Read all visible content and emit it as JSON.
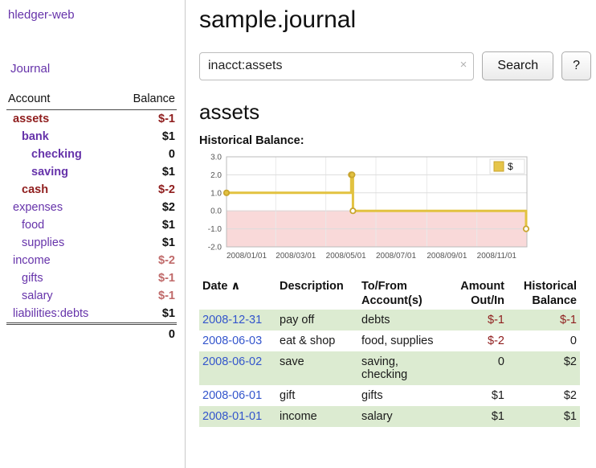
{
  "app": {
    "title": "hledger-web"
  },
  "sidebar": {
    "journal_link": "Journal",
    "accounts_table": {
      "account_header": "Account",
      "balance_header": "Balance",
      "rows": [
        {
          "name": "assets",
          "balance": "$-1"
        },
        {
          "name": "bank",
          "balance": "$1"
        },
        {
          "name": "checking",
          "balance": "0"
        },
        {
          "name": "saving",
          "balance": "$1"
        },
        {
          "name": "cash",
          "balance": "$-2"
        },
        {
          "name": "expenses",
          "balance": "$2"
        },
        {
          "name": "food",
          "balance": "$1"
        },
        {
          "name": "supplies",
          "balance": "$1"
        },
        {
          "name": "income",
          "balance": "$-2"
        },
        {
          "name": "gifts",
          "balance": "$-1"
        },
        {
          "name": "salary",
          "balance": "$-1"
        },
        {
          "name": "liabilities:debts",
          "balance": "$1"
        }
      ],
      "total": "0"
    }
  },
  "main": {
    "title": "sample.journal",
    "search": {
      "value": "inacct:assets",
      "clear": "×",
      "search_button": "Search",
      "help_button": "?"
    },
    "account_heading": "assets",
    "chart_title": "Historical Balance:"
  },
  "chart_data": {
    "type": "line",
    "style": "step-after",
    "title": "Historical Balance",
    "legend": [
      {
        "label": "$",
        "color": "#e6c54a"
      }
    ],
    "ylim": [
      -2.0,
      3.0
    ],
    "y_ticks": [
      3.0,
      2.0,
      1.0,
      0.0,
      -1.0,
      -2.0
    ],
    "x_domain": [
      "2008/01/01",
      "2009/01/01"
    ],
    "x_tick_labels": [
      "2008/01/01",
      "2008/03/01",
      "2008/05/01",
      "2008/07/01",
      "2008/09/01",
      "2008/11/01"
    ],
    "points": [
      {
        "date": "2008/01/01",
        "value": 1,
        "marker": "filled"
      },
      {
        "date": "2008/06/01",
        "value": 2,
        "marker": "filled"
      },
      {
        "date": "2008/06/02",
        "value": 2,
        "marker": "filled"
      },
      {
        "date": "2008/06/03",
        "value": 0,
        "marker": "open"
      },
      {
        "date": "2008/12/31",
        "value": -1,
        "marker": "open"
      }
    ],
    "line_color": "#e2c240",
    "marker_border_color": "#c9a52f",
    "negative_region_color": "#f9d9d9",
    "grid": true,
    "legend_position": "top-right"
  },
  "register": {
    "headers": {
      "date": "Date",
      "sort_indicator": "∧",
      "description": "Description",
      "tofrom": "To/From Account(s)",
      "amount": "Amount Out/In",
      "balance": "Historical Balance"
    },
    "rows": [
      {
        "date": "2008-12-31",
        "description": "pay off",
        "accounts": "debts",
        "amount": "$-1",
        "balance": "$-1"
      },
      {
        "date": "2008-06-03",
        "description": "eat & shop",
        "accounts": "food, supplies",
        "amount": "$-2",
        "balance": "0"
      },
      {
        "date": "2008-06-02",
        "description": "save",
        "accounts": "saving, checking",
        "amount": "0",
        "balance": "$2"
      },
      {
        "date": "2008-06-01",
        "description": "gift",
        "accounts": "gifts",
        "amount": "$1",
        "balance": "$2"
      },
      {
        "date": "2008-01-01",
        "description": "income",
        "accounts": "salary",
        "amount": "$1",
        "balance": "$1"
      }
    ]
  },
  "colors": {
    "purple": "#6633aa",
    "link_blue": "#3355cc",
    "negative_strong": "#8f1d1d",
    "negative_soft": "#c06a6a",
    "row_green": "#dcebd1"
  }
}
